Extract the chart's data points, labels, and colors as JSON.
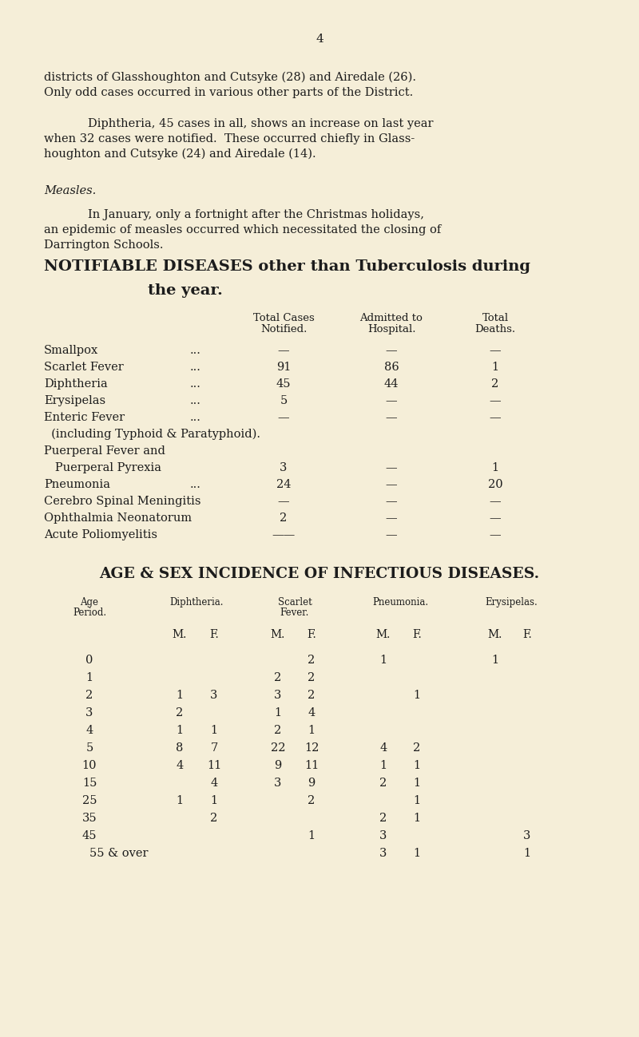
{
  "page_number": "4",
  "bg_color": "#f5eed8",
  "text_color": "#1c1c1c",
  "para1_line1": "districts of Glasshoughton and Cutsyke (28) and Airedale (26).",
  "para1_line2": "Only odd cases occurred in various other parts of the District.",
  "para2_l1": "Diphtheria, 45 cases in all, shows an increase on last year",
  "para2_l2": "when 32 cases were notified.  These occurred chiefly in Glass-",
  "para2_l3": "houghton and Cutsyke (24) and Airedale (14).",
  "measles_heading": "Measles.",
  "para3_l1": "In January, only a fortnight after the Christmas holidays,",
  "para3_l2": "an epidemic of measles occurred which necessitated the closing of",
  "para3_l3": "Darrington Schools.",
  "sec1_t1": "NOTIFIABLE DISEASES other than Tuberculosis during",
  "sec1_t2": "the year.",
  "sec2_title": "AGE & SEX INCIDENCE OF INFECTIOUS DISEASES.",
  "table2_rows": [
    [
      "0",
      "",
      "",
      "",
      "2",
      "1",
      "",
      "1",
      ""
    ],
    [
      "1",
      "",
      "",
      "2",
      "2",
      "",
      "",
      "",
      ""
    ],
    [
      "2",
      "1",
      "3",
      "3",
      "2",
      "",
      "1",
      "",
      ""
    ],
    [
      "3",
      "2",
      "",
      "1",
      "4",
      "",
      "",
      "",
      ""
    ],
    [
      "4",
      "1",
      "1",
      "2",
      "1",
      "",
      "",
      "",
      ""
    ],
    [
      "5",
      "8",
      "7",
      "22",
      "12",
      "4",
      "2",
      "",
      ""
    ],
    [
      "10",
      "4",
      "11",
      "9",
      "11",
      "1",
      "1",
      "",
      ""
    ],
    [
      "15",
      "",
      "4",
      "3",
      "9",
      "2",
      "1",
      "",
      ""
    ],
    [
      "25",
      "1",
      "1",
      "",
      "2",
      "",
      "1",
      "",
      ""
    ],
    [
      "35",
      "",
      "2",
      "",
      "",
      "2",
      "1",
      "",
      ""
    ],
    [
      "45",
      "",
      "",
      "",
      "1",
      "3",
      "",
      "",
      "3"
    ],
    [
      "55 & over",
      "",
      "",
      "",
      "",
      "3",
      "1",
      "",
      "1"
    ]
  ]
}
